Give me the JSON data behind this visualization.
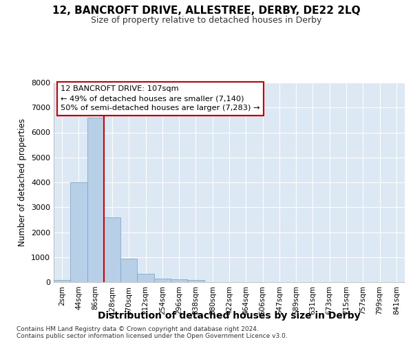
{
  "title": "12, BANCROFT DRIVE, ALLESTREE, DERBY, DE22 2LQ",
  "subtitle": "Size of property relative to detached houses in Derby",
  "xlabel": "Distribution of detached houses by size in Derby",
  "ylabel": "Number of detached properties",
  "bar_values": [
    75,
    4000,
    6600,
    2600,
    950,
    320,
    130,
    110,
    80,
    0,
    0,
    0,
    0,
    0,
    0,
    0,
    0,
    0,
    0,
    0,
    0
  ],
  "bar_labels": [
    "2sqm",
    "44sqm",
    "86sqm",
    "128sqm",
    "170sqm",
    "212sqm",
    "254sqm",
    "296sqm",
    "338sqm",
    "380sqm",
    "422sqm",
    "464sqm",
    "506sqm",
    "547sqm",
    "589sqm",
    "631sqm",
    "673sqm",
    "715sqm",
    "757sqm",
    "799sqm",
    "841sqm"
  ],
  "bar_color": "#b8cfe8",
  "bar_edge_color": "#7aaad0",
  "plot_bg_color": "#dde8f5",
  "fig_bg_color": "#ffffff",
  "grid_color": "#ffffff",
  "vline_x": 2.5,
  "vline_color": "#cc0000",
  "annotation_text": "12 BANCROFT DRIVE: 107sqm\n← 49% of detached houses are smaller (7,140)\n50% of semi-detached houses are larger (7,283) →",
  "annotation_box_facecolor": "#ffffff",
  "annotation_box_edgecolor": "#cc0000",
  "ylim": [
    0,
    8000
  ],
  "yticks": [
    0,
    1000,
    2000,
    3000,
    4000,
    5000,
    6000,
    7000,
    8000
  ],
  "footer_line1": "Contains HM Land Registry data © Crown copyright and database right 2024.",
  "footer_line2": "Contains public sector information licensed under the Open Government Licence v3.0."
}
